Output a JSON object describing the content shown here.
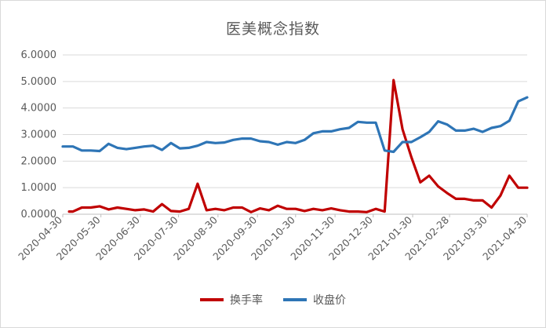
{
  "chart_data": {
    "type": "line",
    "title": "医美概念指数",
    "xlabel": "",
    "ylabel": "",
    "ylim": [
      0,
      6
    ],
    "yticks": [
      "0.0000",
      "1.0000",
      "2.0000",
      "3.0000",
      "4.0000",
      "5.0000",
      "6.0000"
    ],
    "xticks": [
      "2020-04-30",
      "2020-05-30",
      "2020-06-30",
      "2020-07-30",
      "2020-08-30",
      "2020-09-30",
      "2020-10-30",
      "2020-11-30",
      "2020-12-30",
      "2021-01-30",
      "2021-02-28",
      "2021-03-30",
      "2021-04-30"
    ],
    "grid": true,
    "legend_position": "bottom",
    "series": [
      {
        "name": "换手率",
        "color": "#c00000",
        "x": [
          "2020-05-05",
          "2020-05-08",
          "2020-05-15",
          "2020-05-22",
          "2020-05-29",
          "2020-06-05",
          "2020-06-12",
          "2020-06-19",
          "2020-06-26",
          "2020-07-03",
          "2020-07-10",
          "2020-07-17",
          "2020-07-24",
          "2020-07-31",
          "2020-08-07",
          "2020-08-14",
          "2020-08-21",
          "2020-08-28",
          "2020-09-04",
          "2020-09-11",
          "2020-09-18",
          "2020-09-25",
          "2020-10-02",
          "2020-10-09",
          "2020-10-16",
          "2020-10-23",
          "2020-10-30",
          "2020-11-06",
          "2020-11-13",
          "2020-11-20",
          "2020-11-27",
          "2020-12-04",
          "2020-12-11",
          "2020-12-18",
          "2020-12-25",
          "2021-01-01",
          "2021-01-08",
          "2021-01-15",
          "2021-01-22",
          "2021-01-29",
          "2021-02-05",
          "2021-02-12",
          "2021-02-19",
          "2021-02-26",
          "2021-03-05",
          "2021-03-12",
          "2021-03-19",
          "2021-03-26",
          "2021-04-02",
          "2021-04-09",
          "2021-04-16",
          "2021-04-23",
          "2021-04-30"
        ],
        "values": [
          0.1,
          0.1,
          0.25,
          0.25,
          0.3,
          0.18,
          0.25,
          0.2,
          0.15,
          0.18,
          0.1,
          0.38,
          0.12,
          0.1,
          0.2,
          1.15,
          0.15,
          0.2,
          0.15,
          0.25,
          0.25,
          0.08,
          0.22,
          0.15,
          0.32,
          0.2,
          0.2,
          0.12,
          0.2,
          0.15,
          0.22,
          0.15,
          0.1,
          0.1,
          0.08,
          0.2,
          0.1,
          5.05,
          3.2,
          2.15,
          1.2,
          1.45,
          1.05,
          0.8,
          0.58,
          0.58,
          0.52,
          0.52,
          0.25,
          0.7,
          1.45,
          1.0,
          1.0
        ]
      },
      {
        "name": "收盘价",
        "color": "#2e75b6",
        "x": [
          "2020-04-30",
          "2020-05-08",
          "2020-05-15",
          "2020-05-22",
          "2020-05-29",
          "2020-06-05",
          "2020-06-12",
          "2020-06-19",
          "2020-06-26",
          "2020-07-03",
          "2020-07-10",
          "2020-07-17",
          "2020-07-24",
          "2020-07-31",
          "2020-08-07",
          "2020-08-14",
          "2020-08-21",
          "2020-08-28",
          "2020-09-04",
          "2020-09-11",
          "2020-09-18",
          "2020-09-25",
          "2020-10-02",
          "2020-10-09",
          "2020-10-16",
          "2020-10-23",
          "2020-10-30",
          "2020-11-06",
          "2020-11-13",
          "2020-11-20",
          "2020-11-27",
          "2020-12-04",
          "2020-12-11",
          "2020-12-18",
          "2020-12-25",
          "2021-01-01",
          "2021-01-08",
          "2021-01-15",
          "2021-01-22",
          "2021-01-29",
          "2021-02-05",
          "2021-02-12",
          "2021-02-19",
          "2021-02-26",
          "2021-03-05",
          "2021-03-12",
          "2021-03-19",
          "2021-03-26",
          "2021-04-02",
          "2021-04-09",
          "2021-04-16",
          "2021-04-23",
          "2021-04-30"
        ],
        "values": [
          2.55,
          2.55,
          2.4,
          2.4,
          2.38,
          2.65,
          2.5,
          2.45,
          2.5,
          2.55,
          2.58,
          2.42,
          2.68,
          2.48,
          2.5,
          2.58,
          2.72,
          2.68,
          2.7,
          2.8,
          2.85,
          2.85,
          2.75,
          2.72,
          2.62,
          2.72,
          2.68,
          2.8,
          3.05,
          3.12,
          3.12,
          3.2,
          3.25,
          3.48,
          3.45,
          3.45,
          2.4,
          2.35,
          2.72,
          2.72,
          2.9,
          3.1,
          3.5,
          3.38,
          3.15,
          3.15,
          3.22,
          3.1,
          3.25,
          3.32,
          3.52,
          4.25,
          4.4
        ]
      }
    ]
  }
}
